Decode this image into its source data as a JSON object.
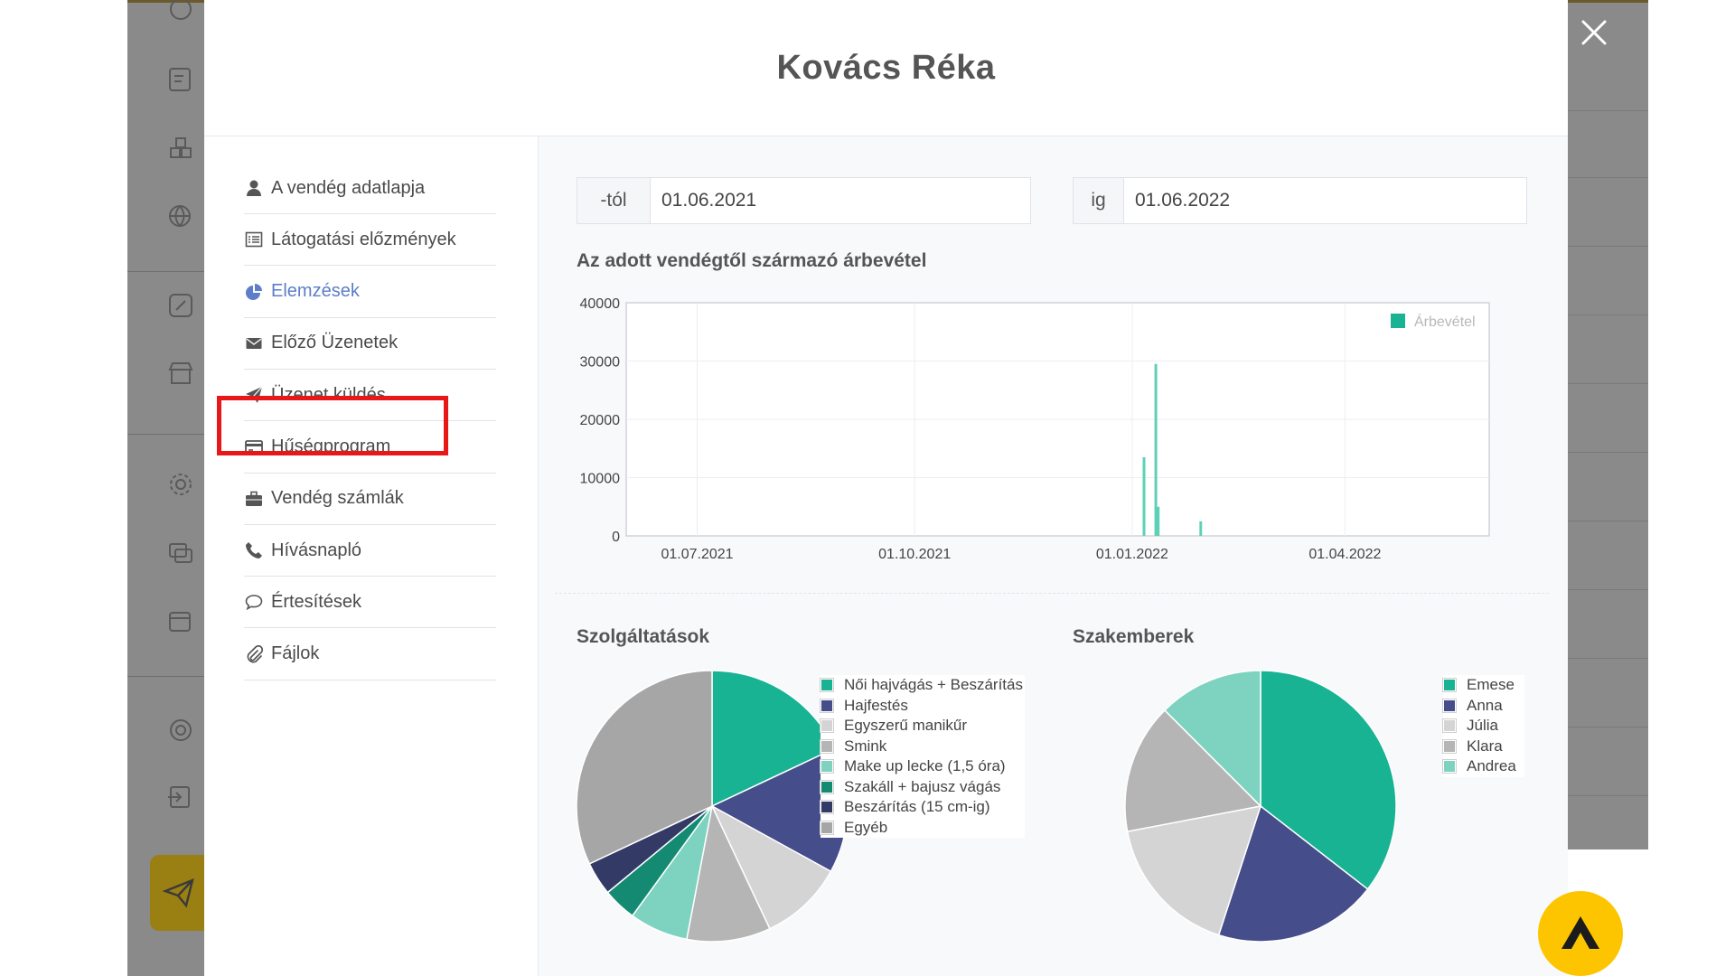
{
  "modal": {
    "title": "Kovács Réka"
  },
  "menu": [
    {
      "label": "A vendég adatlapja",
      "icon": "user-icon"
    },
    {
      "label": "Látogatási előzmények",
      "icon": "list-icon"
    },
    {
      "label": "Elemzések",
      "icon": "pie-chart-icon",
      "active": true
    },
    {
      "label": "Előző Üzenetek",
      "icon": "envelope-icon"
    },
    {
      "label": "Üzenet küldés",
      "icon": "paper-plane-icon"
    },
    {
      "label": "Hűségprogram",
      "icon": "credit-card-icon"
    },
    {
      "label": "Vendég számlák",
      "icon": "briefcase-icon"
    },
    {
      "label": "Hívásnapló",
      "icon": "phone-icon"
    },
    {
      "label": "Értesítések",
      "icon": "comment-icon"
    },
    {
      "label": "Fájlok",
      "icon": "paperclip-icon"
    }
  ],
  "filters": {
    "from_label": "-tól",
    "from_value": "01.06.2021",
    "to_label": "ig",
    "to_value": "01.06.2022"
  },
  "revenue_section": {
    "title": "Az adott vendégtől származó árbevétel"
  },
  "services_section": {
    "title": "Szolgáltatások"
  },
  "specialists_section": {
    "title": "Szakemberek"
  },
  "colors": {
    "accent_active": "#5d7ec8",
    "highlight": "#e81818",
    "fab": "#fdc500",
    "teal": "#17b393",
    "navy": "#454d8a"
  },
  "chart_data": [
    {
      "type": "bar",
      "title": "Az adott vendégtől származó árbevétel",
      "x_type": "date",
      "xlim": [
        "2021-06-01",
        "2022-06-01"
      ],
      "ylim": [
        0,
        40000
      ],
      "y_ticks": [
        "0",
        "10000",
        "20000",
        "30000",
        "40000"
      ],
      "x_ticks": [
        {
          "date": "2021-07-01",
          "label": "01.07.2021"
        },
        {
          "date": "2021-10-01",
          "label": "01.10.2021"
        },
        {
          "date": "2022-01-01",
          "label": "01.01.2022"
        },
        {
          "date": "2022-04-01",
          "label": "01.04.2022"
        }
      ],
      "grid": true,
      "legend_position": "top-right",
      "series": [
        {
          "name": "Árbevétel",
          "color": "#5fd0b7",
          "points": [
            {
              "x": "2022-01-06",
              "y": 13500
            },
            {
              "x": "2022-01-11",
              "y": 29500
            },
            {
              "x": "2022-01-12",
              "y": 5000
            },
            {
              "x": "2022-01-30",
              "y": 2500
            }
          ]
        }
      ]
    },
    {
      "type": "pie",
      "title": "Szolgáltatások",
      "legend_position": "right",
      "slices": [
        {
          "label": "Női hajvágás + Beszárítás",
          "value": 18,
          "color": "#17b393"
        },
        {
          "label": "Hajfestés",
          "value": 15,
          "color": "#454d8a"
        },
        {
          "label": "Egyszerű manikűr",
          "value": 10,
          "color": "#d4d4d4"
        },
        {
          "label": "Smink",
          "value": 10,
          "color": "#b5b5b5"
        },
        {
          "label": "Make up lecke (1,5 óra)",
          "value": 7,
          "color": "#7dd3c0"
        },
        {
          "label": "Szakáll + bajusz vágás",
          "value": 4,
          "color": "#158a73"
        },
        {
          "label": "Beszárítás (15 cm-ig)",
          "value": 4,
          "color": "#333a66"
        },
        {
          "label": "Egyéb",
          "value": 32,
          "color": "#a6a6a6"
        }
      ]
    },
    {
      "type": "pie",
      "title": "Szakemberek",
      "legend_position": "right",
      "slices": [
        {
          "label": "Emese",
          "value": 35.5,
          "color": "#17b393"
        },
        {
          "label": "Anna",
          "value": 19.5,
          "color": "#454d8a"
        },
        {
          "label": "Júlia",
          "value": 17,
          "color": "#d4d4d4"
        },
        {
          "label": "Klara",
          "value": 15.5,
          "color": "#b5b5b5"
        },
        {
          "label": "Andrea",
          "value": 12.5,
          "color": "#7dd3c0"
        }
      ]
    }
  ]
}
